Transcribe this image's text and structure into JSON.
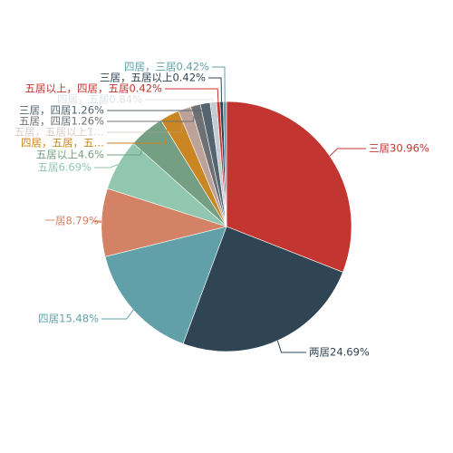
{
  "chart_data": {
    "type": "pie",
    "title": "",
    "slices": [
      {
        "label": "三居30.96%",
        "name": "三居",
        "value": 30.96,
        "color": "#c23531"
      },
      {
        "label": "两居24.69%",
        "name": "两居",
        "value": 24.69,
        "color": "#2f4554"
      },
      {
        "label": "四居15.48%",
        "name": "四居",
        "value": 15.48,
        "color": "#61a0a8"
      },
      {
        "label": "一居8.79%",
        "name": "一居",
        "value": 8.79,
        "color": "#d48265"
      },
      {
        "label": "五居6.69%",
        "name": "五居",
        "value": 6.69,
        "color": "#91c7ae"
      },
      {
        "label": "五居以上4.6%",
        "name": "五居以上",
        "value": 4.6,
        "color": "#749f83"
      },
      {
        "label": "四居，五居，五…",
        "name": "四居，五居，五…",
        "value": 2.51,
        "color": "#ca8622"
      },
      {
        "label": "五居，五居以上1…",
        "name": "五居，五居以上1…",
        "value": 1.67,
        "color": "#bda29a"
      },
      {
        "label": "五居，四居1.26%",
        "name": "五居，四居",
        "value": 1.26,
        "color": "#6e7074"
      },
      {
        "label": "三居，四居1.26%",
        "name": "三居，四居",
        "value": 1.26,
        "color": "#546570"
      },
      {
        "label": "四居，五居0.84%",
        "name": "四居，五居",
        "value": 0.84,
        "color": "#c4ccd3"
      },
      {
        "label": "五居以上，四居，五居0.42%",
        "name": "五居以上，四居，五居",
        "value": 0.42,
        "color": "#c23531"
      },
      {
        "label": "三居，五居以上0.42%",
        "name": "三居，五居以上",
        "value": 0.42,
        "color": "#2f4554"
      },
      {
        "label": "四居，三居0.42%",
        "name": "四居，三居",
        "value": 0.42,
        "color": "#61a0a8"
      }
    ]
  }
}
